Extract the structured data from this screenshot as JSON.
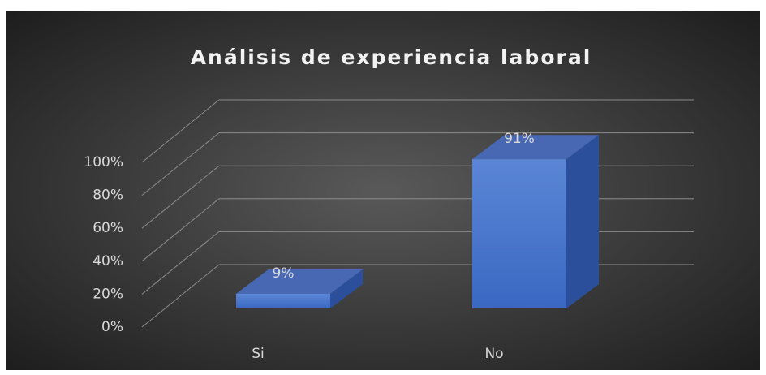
{
  "chart_data": {
    "type": "bar3d",
    "title": "Análisis de experiencia laboral",
    "categories": [
      "Si",
      "No"
    ],
    "values": [
      9,
      91
    ],
    "value_labels": [
      "9%",
      "91%"
    ],
    "color": "#4472c4",
    "ylim": [
      0,
      100
    ],
    "yticks": [
      {
        "value": 0,
        "label": "0%"
      },
      {
        "value": 20,
        "label": "20%"
      },
      {
        "value": 40,
        "label": "40%"
      },
      {
        "value": 60,
        "label": "60%"
      },
      {
        "value": 80,
        "label": "80%"
      },
      {
        "value": 100,
        "label": "100%"
      }
    ],
    "grid": true
  }
}
